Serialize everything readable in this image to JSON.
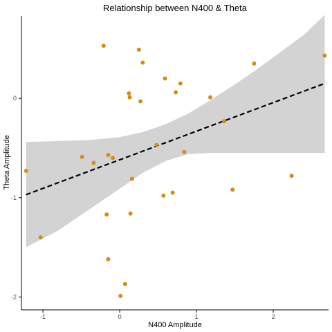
{
  "chart_data": {
    "type": "scatter",
    "title": "Relationship between N400 & Theta",
    "xlabel": "N400 Amplitude",
    "ylabel": "Theta Amplitude",
    "xlim": [
      -1.28,
      2.72
    ],
    "ylim": [
      -2.13,
      0.83
    ],
    "x_ticks": [
      -1,
      0,
      1,
      2
    ],
    "y_ticks": [
      -2,
      -1,
      0
    ],
    "point_color": "#D58C12",
    "fit_line_color": "#000000",
    "ribbon_color": "#D3D3D3",
    "grid": false,
    "points": [
      {
        "x": -1.22,
        "y": -0.73
      },
      {
        "x": -1.03,
        "y": -1.4
      },
      {
        "x": -0.49,
        "y": -0.59
      },
      {
        "x": -0.34,
        "y": -0.65
      },
      {
        "x": -0.21,
        "y": 0.53
      },
      {
        "x": -0.17,
        "y": -1.17
      },
      {
        "x": -0.15,
        "y": -0.57
      },
      {
        "x": -0.15,
        "y": -1.62
      },
      {
        "x": -0.09,
        "y": -0.6
      },
      {
        "x": 0.01,
        "y": -1.99
      },
      {
        "x": 0.07,
        "y": -1.87
      },
      {
        "x": 0.12,
        "y": 0.05
      },
      {
        "x": 0.13,
        "y": 0.01
      },
      {
        "x": 0.14,
        "y": -1.16
      },
      {
        "x": 0.16,
        "y": -0.81
      },
      {
        "x": 0.25,
        "y": 0.49
      },
      {
        "x": 0.27,
        "y": -0.03
      },
      {
        "x": 0.3,
        "y": 0.36
      },
      {
        "x": 0.48,
        "y": -0.47
      },
      {
        "x": 0.57,
        "y": -0.98
      },
      {
        "x": 0.59,
        "y": 0.2
      },
      {
        "x": 0.69,
        "y": -0.95
      },
      {
        "x": 0.73,
        "y": 0.06
      },
      {
        "x": 0.79,
        "y": 0.15
      },
      {
        "x": 0.84,
        "y": -0.54
      },
      {
        "x": 1.18,
        "y": 0.01
      },
      {
        "x": 1.36,
        "y": -0.23
      },
      {
        "x": 1.47,
        "y": -0.92
      },
      {
        "x": 1.75,
        "y": 0.35
      },
      {
        "x": 2.24,
        "y": -0.78
      },
      {
        "x": 2.67,
        "y": 0.43
      }
    ],
    "fit_line": {
      "x": [
        -1.22,
        2.67
      ],
      "y": [
        -0.97,
        0.15
      ]
    },
    "confidence_band": {
      "x": [
        -1.22,
        -0.8,
        -0.4,
        0.0,
        0.3,
        0.6,
        0.9,
        1.2,
        1.5,
        1.8,
        2.1,
        2.4,
        2.67
      ],
      "upper": [
        -0.44,
        -0.43,
        -0.42,
        -0.39,
        -0.34,
        -0.26,
        -0.15,
        -0.01,
        0.14,
        0.3,
        0.47,
        0.64,
        0.84
      ],
      "lower": [
        -1.5,
        -1.33,
        -1.12,
        -0.91,
        -0.75,
        -0.63,
        -0.56,
        -0.55,
        -0.55,
        -0.55,
        -0.55,
        -0.55,
        -0.55
      ]
    }
  }
}
